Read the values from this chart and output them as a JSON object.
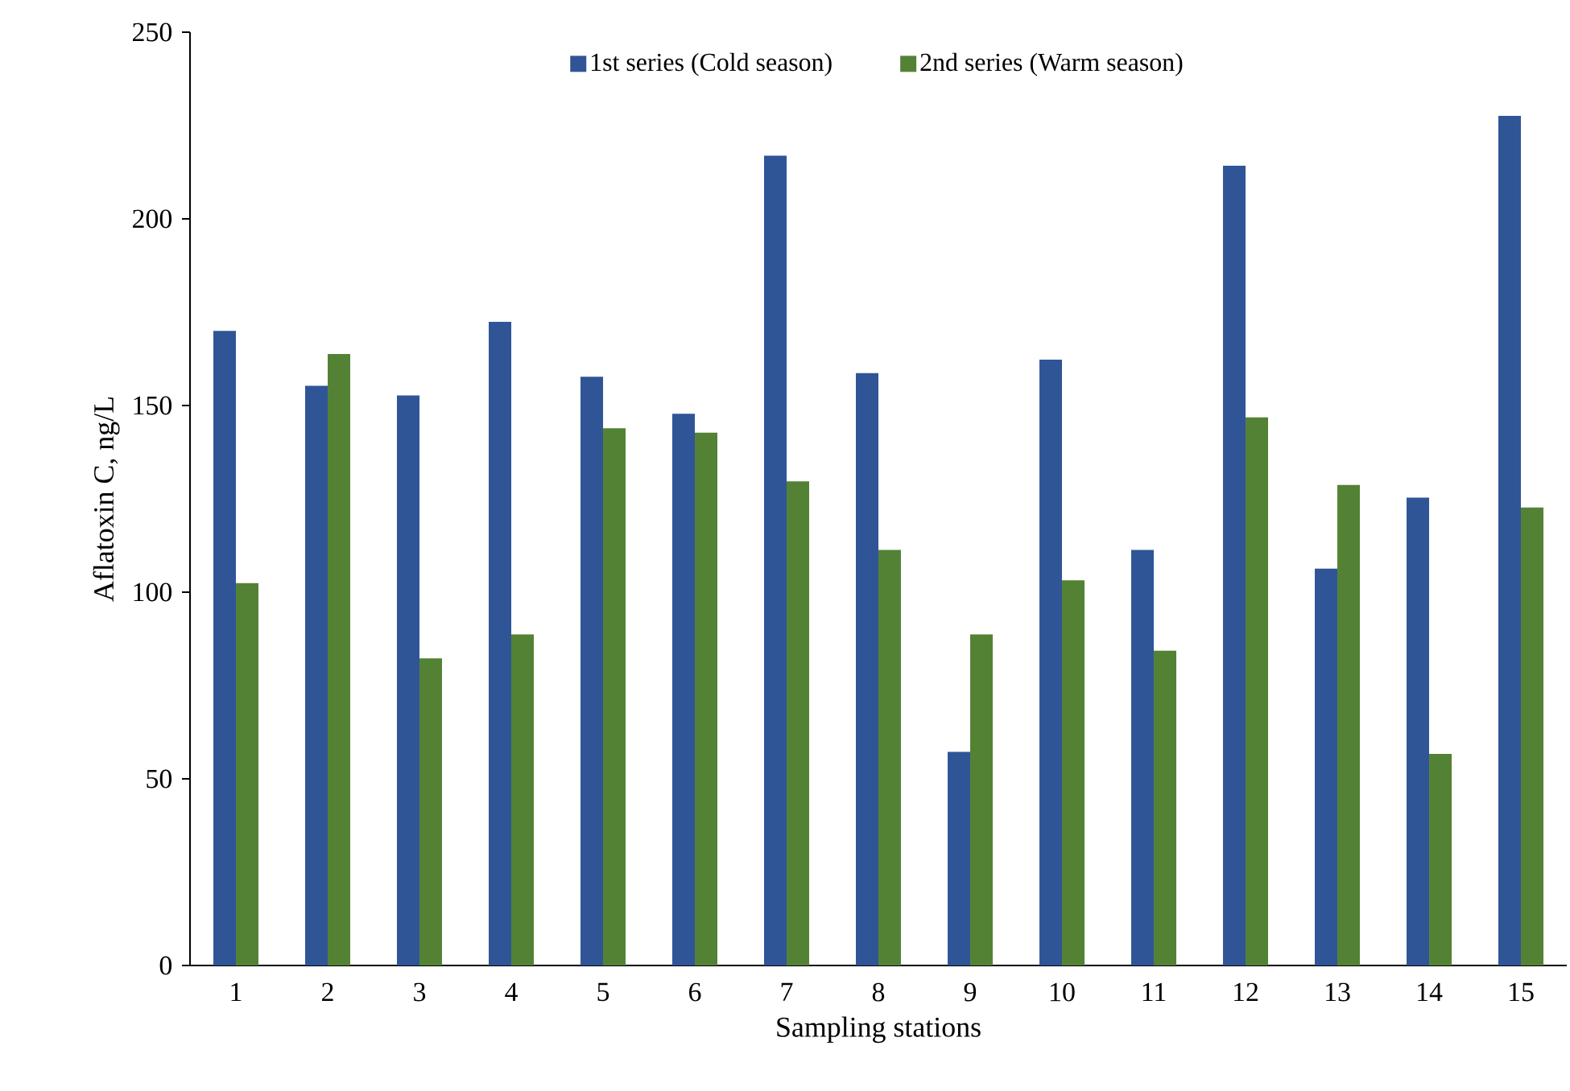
{
  "chart_data": {
    "type": "bar",
    "xlabel": "Sampling stations",
    "ylabel": "Aflatoxin C, ng/L",
    "categories": [
      "1",
      "2",
      "3",
      "4",
      "5",
      "6",
      "7",
      "8",
      "9",
      "10",
      "11",
      "12",
      "13",
      "14",
      "15"
    ],
    "series": [
      {
        "name": "1st series (Cold season)",
        "color": "#2f5597",
        "values": [
          170,
          155.3,
          152.7,
          172.4,
          157.7,
          147.8,
          216.9,
          158.7,
          57.2,
          162.3,
          111.3,
          214.2,
          106.3,
          125.3,
          227.6
        ]
      },
      {
        "name": "2nd series (Warm season)",
        "color": "#548235",
        "values": [
          102.4,
          163.8,
          82.3,
          88.7,
          143.9,
          142.7,
          129.7,
          111.3,
          88.7,
          103.2,
          84.3,
          146.8,
          128.7,
          56.7,
          122.7
        ]
      }
    ],
    "ylim": [
      0,
      250
    ],
    "yticks": [
      0,
      50,
      100,
      150,
      200,
      250
    ],
    "grid": false,
    "legend": "top"
  }
}
